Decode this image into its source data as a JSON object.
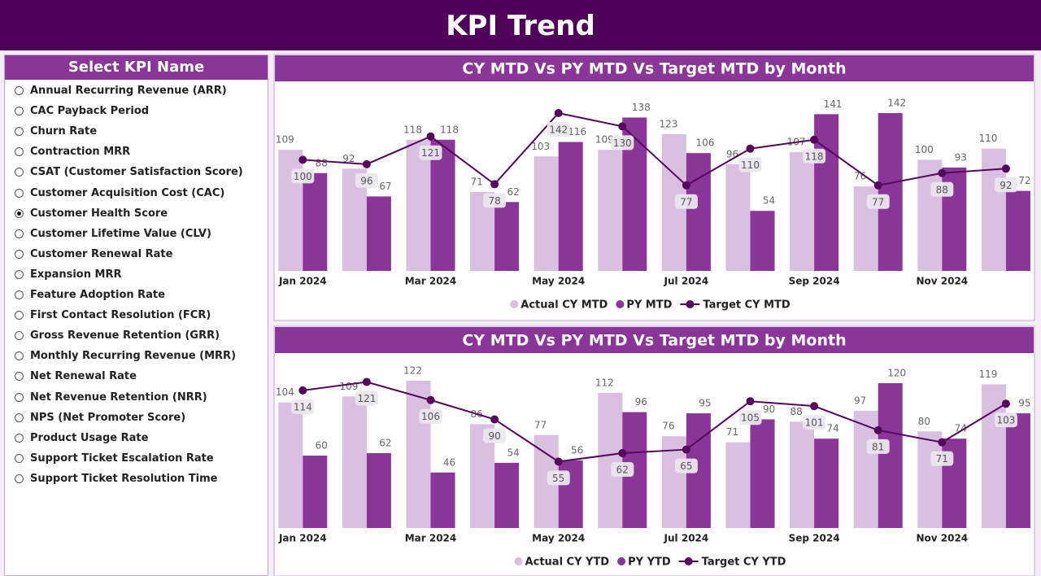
{
  "header": {
    "title": "KPI Trend"
  },
  "slicer": {
    "title": "Select KPI Name",
    "items": [
      {
        "label": "Annual Recurring Revenue (ARR)",
        "selected": false
      },
      {
        "label": "CAC Payback Period",
        "selected": false
      },
      {
        "label": "Churn Rate",
        "selected": false
      },
      {
        "label": "Contraction MRR",
        "selected": false
      },
      {
        "label": "CSAT (Customer Satisfaction Score)",
        "selected": false
      },
      {
        "label": "Customer Acquisition Cost (CAC)",
        "selected": false
      },
      {
        "label": "Customer Health Score",
        "selected": true
      },
      {
        "label": "Customer Lifetime Value (CLV)",
        "selected": false
      },
      {
        "label": "Customer Renewal Rate",
        "selected": false
      },
      {
        "label": "Expansion MRR",
        "selected": false
      },
      {
        "label": "Feature Adoption Rate",
        "selected": false
      },
      {
        "label": "First Contact Resolution (FCR)",
        "selected": false
      },
      {
        "label": "Gross Revenue Retention (GRR)",
        "selected": false
      },
      {
        "label": "Monthly Recurring Revenue (MRR)",
        "selected": false
      },
      {
        "label": "Net Renewal Rate",
        "selected": false
      },
      {
        "label": "Net Revenue Retention (NRR)",
        "selected": false
      },
      {
        "label": "NPS (Net Promoter Score)",
        "selected": false
      },
      {
        "label": "Product Usage Rate",
        "selected": false
      },
      {
        "label": "Support Ticket Escalation Rate",
        "selected": false
      },
      {
        "label": "Support Ticket Resolution Time",
        "selected": false
      }
    ]
  },
  "chart_data": [
    {
      "type": "combo",
      "title": "CY MTD Vs PY MTD Vs Target MTD by Month",
      "categories": [
        "Jan 2024",
        null,
        "Mar 2024",
        null,
        "May 2024",
        null,
        "Jul 2024",
        null,
        "Sep 2024",
        null,
        "Nov 2024",
        null
      ],
      "series": [
        {
          "name": "Actual CY MTD",
          "type": "bar",
          "color": "#d9bfe0",
          "values": [
            109,
            92,
            118,
            71,
            103,
            109,
            123,
            96,
            107,
            76,
            100,
            110
          ]
        },
        {
          "name": "PY MTD",
          "type": "bar",
          "color": "#8a3598",
          "values": [
            88,
            67,
            118,
            62,
            116,
            138,
            106,
            54,
            141,
            142,
            93,
            72
          ]
        },
        {
          "name": "Target CY MTD",
          "type": "line",
          "color": "#55075c",
          "values": [
            100,
            96,
            121,
            78,
            142,
            130,
            77,
            110,
            118,
            77,
            88,
            92
          ]
        }
      ]
    },
    {
      "type": "combo",
      "title": "CY MTD Vs PY MTD Vs Target MTD by Month",
      "categories": [
        "Jan 2024",
        null,
        "Mar 2024",
        null,
        "May 2024",
        null,
        "Jul 2024",
        null,
        "Sep 2024",
        null,
        "Nov 2024",
        null
      ],
      "series": [
        {
          "name": "Actual CY YTD",
          "type": "bar",
          "color": "#d9bfe0",
          "values": [
            104,
            109,
            122,
            86,
            77,
            112,
            76,
            71,
            88,
            97,
            80,
            119
          ]
        },
        {
          "name": "PY YTD",
          "type": "bar",
          "color": "#8a3598",
          "values": [
            60,
            62,
            46,
            54,
            56,
            96,
            95,
            90,
            74,
            120,
            74,
            95
          ]
        },
        {
          "name": "Target CY YTD",
          "type": "line",
          "color": "#55075c",
          "values": [
            114,
            121,
            106,
            90,
            55,
            62,
            65,
            105,
            101,
            81,
            71,
            103
          ]
        }
      ]
    }
  ]
}
